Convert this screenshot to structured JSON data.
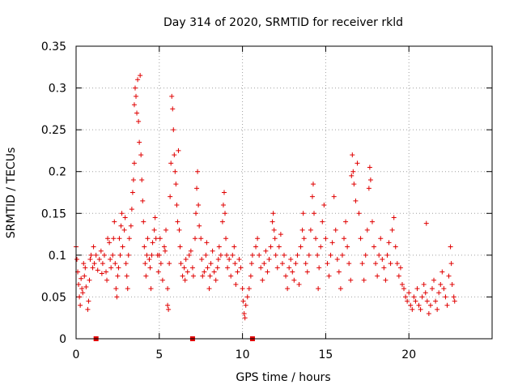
{
  "chart_data": {
    "type": "scatter",
    "title": "Day 314 of 2020, SRMTID for receiver rkld",
    "xlabel": "GPS time / hours",
    "ylabel": "SRMTID / TECUs",
    "xlim": [
      0,
      25
    ],
    "ylim": [
      0,
      0.35
    ],
    "x_ticks": [
      0,
      5,
      10,
      15,
      20
    ],
    "x_tick_labels": [
      "0",
      "5",
      "10",
      "15",
      "20"
    ],
    "y_ticks": [
      0,
      0.05,
      0.1,
      0.15,
      0.2,
      0.25,
      0.3,
      0.35
    ],
    "y_tick_labels": [
      "0",
      "0.05",
      "0.1",
      "0.15",
      "0.2",
      "0.25",
      "0.3",
      "0.35"
    ],
    "grid": true,
    "marker": "plus",
    "color": "#e00000",
    "data_gaps_x": [
      1.2,
      7.0,
      10.6
    ],
    "series": [
      {
        "name": "rkld",
        "points": [
          [
            0.0,
            0.11
          ],
          [
            0.05,
            0.095
          ],
          [
            0.1,
            0.08
          ],
          [
            0.15,
            0.065
          ],
          [
            0.2,
            0.05
          ],
          [
            0.25,
            0.04
          ],
          [
            0.3,
            0.072
          ],
          [
            0.35,
            0.06
          ],
          [
            0.4,
            0.055
          ],
          [
            0.45,
            0.09
          ],
          [
            0.5,
            0.075
          ],
          [
            0.55,
            0.085
          ],
          [
            0.6,
            0.062
          ],
          [
            0.7,
            0.035
          ],
          [
            0.75,
            0.045
          ],
          [
            0.8,
            0.07
          ],
          [
            0.85,
            0.095
          ],
          [
            0.9,
            0.1
          ],
          [
            1.0,
            0.085
          ],
          [
            1.05,
            0.11
          ],
          [
            1.1,
            0.09
          ],
          [
            1.2,
            0.1
          ],
          [
            1.3,
            0.082
          ],
          [
            1.4,
            0.095
          ],
          [
            1.5,
            0.105
          ],
          [
            1.55,
            0.078
          ],
          [
            1.6,
            0.09
          ],
          [
            1.7,
            0.1
          ],
          [
            1.8,
            0.08
          ],
          [
            1.85,
            0.07
          ],
          [
            1.9,
            0.12
          ],
          [
            2.0,
            0.115
          ],
          [
            2.05,
            0.095
          ],
          [
            2.1,
            0.085
          ],
          [
            2.2,
            0.1
          ],
          [
            2.25,
            0.12
          ],
          [
            2.3,
            0.14
          ],
          [
            2.35,
            0.09
          ],
          [
            2.4,
            0.06
          ],
          [
            2.45,
            0.05
          ],
          [
            2.5,
            0.075
          ],
          [
            2.55,
            0.085
          ],
          [
            2.6,
            0.12
          ],
          [
            2.65,
            0.1
          ],
          [
            2.7,
            0.135
          ],
          [
            2.75,
            0.15
          ],
          [
            2.8,
            0.11
          ],
          [
            2.9,
            0.13
          ],
          [
            2.95,
            0.145
          ],
          [
            3.0,
            0.09
          ],
          [
            3.05,
            0.075
          ],
          [
            3.1,
            0.06
          ],
          [
            3.15,
            0.1
          ],
          [
            3.2,
            0.12
          ],
          [
            3.3,
            0.135
          ],
          [
            3.35,
            0.155
          ],
          [
            3.4,
            0.175
          ],
          [
            3.45,
            0.19
          ],
          [
            3.5,
            0.21
          ],
          [
            3.5,
            0.28
          ],
          [
            3.55,
            0.3
          ],
          [
            3.6,
            0.29
          ],
          [
            3.65,
            0.27
          ],
          [
            3.7,
            0.31
          ],
          [
            3.75,
            0.26
          ],
          [
            3.8,
            0.235
          ],
          [
            3.85,
            0.315
          ],
          [
            3.9,
            0.22
          ],
          [
            3.95,
            0.19
          ],
          [
            4.0,
            0.165
          ],
          [
            4.05,
            0.14
          ],
          [
            4.1,
            0.11
          ],
          [
            4.15,
            0.09
          ],
          [
            4.2,
            0.075
          ],
          [
            4.25,
            0.1
          ],
          [
            4.3,
            0.12
          ],
          [
            4.4,
            0.095
          ],
          [
            4.45,
            0.085
          ],
          [
            4.5,
            0.06
          ],
          [
            4.55,
            0.1
          ],
          [
            4.6,
            0.115
          ],
          [
            4.7,
            0.13
          ],
          [
            4.75,
            0.145
          ],
          [
            4.8,
            0.12
          ],
          [
            4.9,
            0.1
          ],
          [
            4.95,
            0.08
          ],
          [
            5.0,
            0.1
          ],
          [
            5.05,
            0.12
          ],
          [
            5.1,
            0.09
          ],
          [
            5.2,
            0.07
          ],
          [
            5.3,
            0.11
          ],
          [
            5.35,
            0.105
          ],
          [
            5.4,
            0.13
          ],
          [
            5.5,
            0.06
          ],
          [
            5.5,
            0.04
          ],
          [
            5.55,
            0.035
          ],
          [
            5.6,
            0.09
          ],
          [
            5.65,
            0.17
          ],
          [
            5.7,
            0.21
          ],
          [
            5.75,
            0.29
          ],
          [
            5.8,
            0.275
          ],
          [
            5.85,
            0.25
          ],
          [
            5.9,
            0.22
          ],
          [
            5.95,
            0.2
          ],
          [
            6.0,
            0.185
          ],
          [
            6.05,
            0.16
          ],
          [
            6.1,
            0.14
          ],
          [
            6.15,
            0.225
          ],
          [
            6.2,
            0.13
          ],
          [
            6.25,
            0.11
          ],
          [
            6.3,
            0.09
          ],
          [
            6.4,
            0.075
          ],
          [
            6.5,
            0.085
          ],
          [
            6.55,
            0.07
          ],
          [
            6.6,
            0.095
          ],
          [
            6.7,
            0.08
          ],
          [
            6.8,
            0.1
          ],
          [
            6.9,
            0.105
          ],
          [
            7.0,
            0.085
          ],
          [
            7.05,
            0.075
          ],
          [
            7.15,
            0.12
          ],
          [
            7.2,
            0.15
          ],
          [
            7.25,
            0.18
          ],
          [
            7.3,
            0.2
          ],
          [
            7.35,
            0.16
          ],
          [
            7.4,
            0.135
          ],
          [
            7.5,
            0.12
          ],
          [
            7.55,
            0.095
          ],
          [
            7.6,
            0.075
          ],
          [
            7.7,
            0.08
          ],
          [
            7.8,
            0.1
          ],
          [
            7.85,
            0.115
          ],
          [
            7.9,
            0.085
          ],
          [
            8.0,
            0.06
          ],
          [
            8.05,
            0.075
          ],
          [
            8.1,
            0.09
          ],
          [
            8.2,
            0.105
          ],
          [
            8.3,
            0.08
          ],
          [
            8.4,
            0.07
          ],
          [
            8.5,
            0.085
          ],
          [
            8.55,
            0.095
          ],
          [
            8.6,
            0.11
          ],
          [
            8.7,
            0.1
          ],
          [
            8.8,
            0.14
          ],
          [
            8.85,
            0.16
          ],
          [
            8.9,
            0.175
          ],
          [
            8.95,
            0.15
          ],
          [
            9.0,
            0.12
          ],
          [
            9.05,
            0.1
          ],
          [
            9.1,
            0.085
          ],
          [
            9.2,
            0.095
          ],
          [
            9.3,
            0.075
          ],
          [
            9.4,
            0.1
          ],
          [
            9.5,
            0.11
          ],
          [
            9.55,
            0.09
          ],
          [
            9.6,
            0.065
          ],
          [
            9.7,
            0.08
          ],
          [
            9.8,
            0.095
          ],
          [
            9.9,
            0.085
          ],
          [
            10.0,
            0.06
          ],
          [
            10.05,
            0.045
          ],
          [
            10.1,
            0.03
          ],
          [
            10.15,
            0.025
          ],
          [
            10.2,
            0.04
          ],
          [
            10.3,
            0.05
          ],
          [
            10.4,
            0.06
          ],
          [
            10.5,
            0.075
          ],
          [
            10.55,
            0.09
          ],
          [
            10.6,
            0.1
          ],
          [
            10.8,
            0.11
          ],
          [
            10.9,
            0.12
          ],
          [
            11.0,
            0.1
          ],
          [
            11.1,
            0.085
          ],
          [
            11.2,
            0.07
          ],
          [
            11.3,
            0.09
          ],
          [
            11.4,
            0.105
          ],
          [
            11.5,
            0.08
          ],
          [
            11.6,
            0.095
          ],
          [
            11.7,
            0.11
          ],
          [
            11.8,
            0.14
          ],
          [
            11.85,
            0.15
          ],
          [
            11.9,
            0.13
          ],
          [
            11.95,
            0.12
          ],
          [
            12.0,
            0.1
          ],
          [
            12.1,
            0.085
          ],
          [
            12.2,
            0.11
          ],
          [
            12.3,
            0.125
          ],
          [
            12.4,
            0.09
          ],
          [
            12.5,
            0.1
          ],
          [
            12.6,
            0.075
          ],
          [
            12.7,
            0.06
          ],
          [
            12.8,
            0.085
          ],
          [
            12.9,
            0.095
          ],
          [
            13.0,
            0.08
          ],
          [
            13.1,
            0.07
          ],
          [
            13.2,
            0.09
          ],
          [
            13.3,
            0.1
          ],
          [
            13.4,
            0.065
          ],
          [
            13.5,
            0.11
          ],
          [
            13.6,
            0.13
          ],
          [
            13.65,
            0.15
          ],
          [
            13.7,
            0.12
          ],
          [
            13.8,
            0.09
          ],
          [
            13.9,
            0.08
          ],
          [
            14.0,
            0.1
          ],
          [
            14.1,
            0.13
          ],
          [
            14.2,
            0.17
          ],
          [
            14.25,
            0.185
          ],
          [
            14.3,
            0.15
          ],
          [
            14.4,
            0.12
          ],
          [
            14.5,
            0.1
          ],
          [
            14.55,
            0.06
          ],
          [
            14.6,
            0.085
          ],
          [
            14.7,
            0.11
          ],
          [
            14.8,
            0.14
          ],
          [
            14.9,
            0.16
          ],
          [
            15.0,
            0.12
          ],
          [
            15.1,
            0.09
          ],
          [
            15.2,
            0.075
          ],
          [
            15.3,
            0.1
          ],
          [
            15.4,
            0.115
          ],
          [
            15.5,
            0.17
          ],
          [
            15.6,
            0.13
          ],
          [
            15.7,
            0.095
          ],
          [
            15.8,
            0.08
          ],
          [
            15.9,
            0.06
          ],
          [
            16.0,
            0.1
          ],
          [
            16.1,
            0.12
          ],
          [
            16.2,
            0.14
          ],
          [
            16.3,
            0.11
          ],
          [
            16.4,
            0.09
          ],
          [
            16.5,
            0.07
          ],
          [
            16.55,
            0.195
          ],
          [
            16.6,
            0.22
          ],
          [
            16.65,
            0.2
          ],
          [
            16.7,
            0.185
          ],
          [
            16.8,
            0.165
          ],
          [
            16.9,
            0.21
          ],
          [
            17.0,
            0.15
          ],
          [
            17.1,
            0.12
          ],
          [
            17.2,
            0.09
          ],
          [
            17.3,
            0.07
          ],
          [
            17.4,
            0.1
          ],
          [
            17.5,
            0.13
          ],
          [
            17.6,
            0.18
          ],
          [
            17.65,
            0.205
          ],
          [
            17.7,
            0.19
          ],
          [
            17.8,
            0.14
          ],
          [
            17.9,
            0.11
          ],
          [
            18.0,
            0.09
          ],
          [
            18.1,
            0.075
          ],
          [
            18.2,
            0.1
          ],
          [
            18.3,
            0.12
          ],
          [
            18.4,
            0.095
          ],
          [
            18.5,
            0.085
          ],
          [
            18.6,
            0.07
          ],
          [
            18.7,
            0.1
          ],
          [
            18.8,
            0.115
          ],
          [
            18.9,
            0.09
          ],
          [
            19.0,
            0.13
          ],
          [
            19.1,
            0.145
          ],
          [
            19.2,
            0.11
          ],
          [
            19.3,
            0.09
          ],
          [
            19.4,
            0.075
          ],
          [
            19.5,
            0.085
          ],
          [
            19.6,
            0.065
          ],
          [
            19.7,
            0.06
          ],
          [
            19.8,
            0.05
          ],
          [
            19.9,
            0.045
          ],
          [
            20.0,
            0.055
          ],
          [
            20.1,
            0.04
          ],
          [
            20.2,
            0.035
          ],
          [
            20.3,
            0.05
          ],
          [
            20.4,
            0.045
          ],
          [
            20.5,
            0.06
          ],
          [
            20.6,
            0.04
          ],
          [
            20.7,
            0.035
          ],
          [
            20.8,
            0.05
          ],
          [
            20.9,
            0.065
          ],
          [
            21.0,
            0.055
          ],
          [
            21.05,
            0.138
          ],
          [
            21.1,
            0.045
          ],
          [
            21.2,
            0.03
          ],
          [
            21.3,
            0.04
          ],
          [
            21.4,
            0.06
          ],
          [
            21.5,
            0.07
          ],
          [
            21.6,
            0.045
          ],
          [
            21.7,
            0.035
          ],
          [
            21.8,
            0.055
          ],
          [
            21.9,
            0.065
          ],
          [
            22.0,
            0.08
          ],
          [
            22.1,
            0.06
          ],
          [
            22.2,
            0.05
          ],
          [
            22.3,
            0.04
          ],
          [
            22.4,
            0.075
          ],
          [
            22.5,
            0.11
          ],
          [
            22.55,
            0.09
          ],
          [
            22.6,
            0.065
          ],
          [
            22.7,
            0.05
          ],
          [
            22.75,
            0.045
          ]
        ]
      }
    ]
  }
}
